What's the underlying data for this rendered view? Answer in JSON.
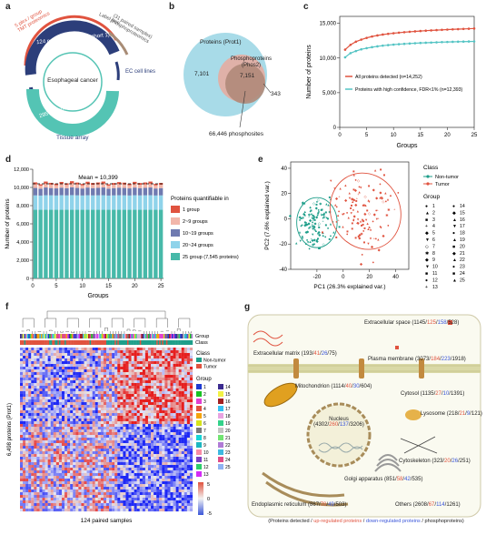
{
  "panels": {
    "a": {
      "label": "a",
      "center": "Esophageal cancer",
      "ring_labels": {
        "paired": "124 paired samples (Cohort 1)",
        "patients": "295 patients (Cohort 2)",
        "tmt": "5 plex / group\nTMT proteomics",
        "label_free": "Label free",
        "phospho": "(31 paired samples)\nphosphoproteomics",
        "ec_lines": "EC cell lines",
        "tissue_array": "Tissue array"
      },
      "colors": {
        "red": "#e0533f",
        "navy": "#2c3e7a",
        "teal": "#54c4b4",
        "tan": "#a88c76"
      }
    },
    "b": {
      "label": "b",
      "proteins_label": "Proteins (Prot1)",
      "phospho_label": "Phosphoproteins\n(Phos2)",
      "left_count": "7,101",
      "overlap_count": "7,151",
      "right_count": "343",
      "phosphosites": "66,446 phosphosites"
    },
    "c": {
      "label": "c",
      "chart_data": {
        "type": "line",
        "xlabel": "Groups",
        "ylabel": "Number of proteins",
        "xlim": [
          0,
          25
        ],
        "ylim": [
          0,
          16000
        ],
        "xticks": [
          0,
          5,
          10,
          15,
          20,
          25
        ],
        "yticks": [
          0,
          5000,
          10000,
          15000
        ],
        "ytick_labels": [
          "0",
          "5,000",
          "10,000",
          "15,000"
        ],
        "x": [
          1,
          2,
          3,
          4,
          5,
          6,
          7,
          8,
          9,
          10,
          11,
          12,
          13,
          14,
          15,
          16,
          17,
          18,
          19,
          20,
          21,
          22,
          23,
          24,
          25
        ],
        "series": [
          {
            "name": "All proteins detected (n=14,252)",
            "color": "#e0533f",
            "values": [
              11200,
              11900,
              12350,
              12650,
              12900,
              13100,
              13250,
              13380,
              13480,
              13570,
              13650,
              13720,
              13780,
              13840,
              13890,
              13940,
              13980,
              14020,
              14060,
              14100,
              14130,
              14160,
              14190,
              14220,
              14252
            ]
          },
          {
            "name": "Proteins with high confidence, FDR<1% (n=12,393)",
            "color": "#54c4c4",
            "values": [
              10100,
              10700,
              11000,
              11250,
              11420,
              11560,
              11680,
              11780,
              11860,
              11930,
              11990,
              12040,
              12090,
              12130,
              12170,
              12200,
              12230,
              12260,
              12290,
              12310,
              12330,
              12350,
              12365,
              12380,
              12393
            ]
          }
        ]
      }
    },
    "d": {
      "label": "d",
      "mean_label": "Mean = 10,399",
      "legend_title": "Proteins quantifiable in",
      "chart_data": {
        "type": "bar",
        "xlabel": "Groups",
        "ylabel": "Number of proteins",
        "xlim": [
          0,
          25
        ],
        "ylim": [
          0,
          12000
        ],
        "xticks": [
          0,
          5,
          10,
          15,
          20,
          25
        ],
        "yticks": [
          0,
          2000,
          4000,
          6000,
          8000,
          10000,
          12000
        ],
        "ytick_labels": [
          "0",
          "2,000",
          "4,000",
          "6,000",
          "8,000",
          "10,000",
          "12,000"
        ],
        "categories": [
          1,
          2,
          3,
          4,
          5,
          6,
          7,
          8,
          9,
          10,
          11,
          12,
          13,
          14,
          15,
          16,
          17,
          18,
          19,
          20,
          21,
          22,
          23,
          24,
          25
        ],
        "stacked": true,
        "series": [
          {
            "name": "25 group (7,545 proteins)",
            "color": "#47b9a9",
            "values": [
              7545,
              7545,
              7545,
              7545,
              7545,
              7545,
              7545,
              7545,
              7545,
              7545,
              7545,
              7545,
              7545,
              7545,
              7545,
              7545,
              7545,
              7545,
              7545,
              7545,
              7545,
              7545,
              7545,
              7545,
              7545
            ]
          },
          {
            "name": "20~24 groups",
            "color": "#8fd3ea",
            "values": [
              1580,
              1560,
              1600,
              1590,
              1570,
              1600,
              1580,
              1610,
              1590,
              1570,
              1600,
              1580,
              1590,
              1600,
              1560,
              1580,
              1600,
              1590,
              1570,
              1600,
              1580,
              1590,
              1600,
              1570,
              1580
            ]
          },
          {
            "name": "10~19 groups",
            "color": "#6f7ab0",
            "values": [
              820,
              760,
              850,
              800,
              780,
              830,
              790,
              860,
              810,
              770,
              840,
              800,
              820,
              850,
              760,
              800,
              830,
              810,
              780,
              840,
              800,
              820,
              850,
              770,
              800
            ]
          },
          {
            "name": "2~9 groups",
            "color": "#f2b6aa",
            "values": [
              400,
              330,
              420,
              380,
              350,
              410,
              360,
              430,
              390,
              340,
              410,
              370,
              390,
              420,
              330,
              370,
              400,
              380,
              350,
              410,
              370,
              390,
              420,
              340,
              380
            ]
          },
          {
            "name": "1 group",
            "color": "#e0533f",
            "values": [
              210,
              150,
              230,
              190,
              170,
              220,
              180,
              240,
              200,
              160,
              230,
              190,
              200,
              230,
              150,
              190,
              210,
              200,
              170,
              220,
              190,
              200,
              230,
              160,
              190
            ]
          }
        ],
        "mean": 10399
      }
    },
    "e": {
      "label": "e",
      "legend_class_title": "Class",
      "legend_class": [
        {
          "name": "Non-tumor",
          "color": "#1e9e8a"
        },
        {
          "name": "Tumor",
          "color": "#e0533f"
        }
      ],
      "legend_group_title": "Group",
      "legend_groups": [
        "1",
        "2",
        "3",
        "4",
        "5",
        "6",
        "7",
        "8",
        "9",
        "10",
        "11",
        "12",
        "13",
        "14",
        "15",
        "16",
        "17",
        "18",
        "19",
        "20",
        "21",
        "22",
        "23",
        "24",
        "25"
      ],
      "group_symbols": [
        "●",
        "▲",
        "■",
        "+",
        "◆",
        "▼",
        "◇",
        "✱",
        "◆",
        "▼",
        "■",
        "●",
        "+",
        "●",
        "◆",
        "▲",
        "▼",
        "●",
        "▲",
        "■",
        "◆",
        "▲",
        "●",
        "■",
        "▲"
      ],
      "chart_data": {
        "type": "scatter",
        "xlabel": "PC1 (26.3% explained var.)",
        "ylabel": "PC2 (7.6% explained var.)",
        "xlim": [
          -40,
          50
        ],
        "ylim": [
          -40,
          45
        ],
        "xticks": [
          -20,
          0,
          20,
          40
        ],
        "yticks": [
          -40,
          -20,
          0,
          20,
          40
        ],
        "series": [
          {
            "name": "Non-tumor",
            "color": "#1e9e8a",
            "center": [
              -20,
              -3
            ],
            "spread": [
              7,
              9
            ],
            "n": 124
          },
          {
            "name": "Tumor",
            "color": "#e0533f",
            "center": [
              17,
              6
            ],
            "spread": [
              12,
              14
            ],
            "n": 124
          }
        ]
      }
    },
    "f": {
      "label": "f",
      "ylabel": "6,498 proteins (Prot1)",
      "xlabel": "124 paired samples",
      "row_labels": {
        "group": "Group",
        "class": "Class"
      },
      "class_legend_title": "Class",
      "class_legend": [
        {
          "name": "Non-tumor",
          "color": "#1e9e8a"
        },
        {
          "name": "Tumor",
          "color": "#e0533f"
        }
      ],
      "group_legend_title": "Group",
      "group_colors": [
        "#1f3bd1",
        "#19c223",
        "#e23fd1",
        "#e0533f",
        "#f5a40c",
        "#d7e31b",
        "#7a7a7a",
        "#16d5d8",
        "#1db6c0",
        "#f98ca6",
        "#7b3fc4",
        "#2ccd6b",
        "#d42bf5",
        "#3b2b8f",
        "#f2f244",
        "#a22121",
        "#36c2f2",
        "#e8a3e1",
        "#33d28a",
        "#c3c3c3",
        "#72e472",
        "#b07bd6",
        "#3fb8e0",
        "#e04c87",
        "#8fb2f2"
      ],
      "group_labels": [
        "1",
        "2",
        "3",
        "4",
        "5",
        "6",
        "7",
        "8",
        "9",
        "10",
        "11",
        "12",
        "13",
        "14",
        "15",
        "16",
        "17",
        "18",
        "19",
        "20",
        "21",
        "22",
        "23",
        "24",
        "25"
      ],
      "scale_labels": [
        "5",
        "0",
        "-5"
      ]
    },
    "g": {
      "label": "g",
      "labels": {
        "extracellular_space": [
          "Extracellular space (",
          "1145",
          "/",
          "125",
          "/",
          "158",
          "/",
          "528",
          ")"
        ],
        "extracellular_matrix": [
          "Extracellular matrix (",
          "193",
          "/",
          "41",
          "/",
          "26",
          "/",
          "75",
          ")"
        ],
        "plasma_membrane": [
          "Plasma membrane (",
          "3073",
          "/",
          "184",
          "/",
          "223",
          "/",
          "1918",
          ")"
        ],
        "mitochondrion": [
          "Mitochondrion (",
          "1114",
          "/",
          "40",
          "/",
          "30",
          "/",
          "604",
          ")"
        ],
        "cytosol": [
          "Cytosol (",
          "1135",
          "/",
          "27",
          "/",
          "10",
          "/",
          "1391",
          ")"
        ],
        "nucleus": [
          "Nucleus\n(",
          "4302",
          "/",
          "260",
          "/",
          "137",
          "/",
          "3206",
          ")"
        ],
        "lysosome": [
          "Lysosome (",
          "218",
          "/",
          "21",
          "/",
          "9",
          "/",
          "121",
          ")"
        ],
        "cytoskeleton": [
          "Cytoskeleton (",
          "323",
          "/",
          "20",
          "/",
          "26",
          "/",
          "251",
          ")"
        ],
        "golgi": [
          "Golgi apparatus (",
          "851",
          "/",
          "58",
          "/",
          "42",
          "/",
          "535",
          ")"
        ],
        "er": [
          "Endoplasmic reticulum (",
          "867",
          "/",
          "70",
          "/",
          "49",
          "/",
          "503",
          ")"
        ],
        "others": [
          "Others (",
          "2608",
          "/",
          "67",
          "/",
          "114",
          "/",
          "1261",
          ")"
        ]
      },
      "footer": [
        "(Proteins detected / ",
        "up-regulated proteins",
        " / ",
        "down-regulated proteins",
        " / phosphoproteins)"
      ]
    }
  }
}
